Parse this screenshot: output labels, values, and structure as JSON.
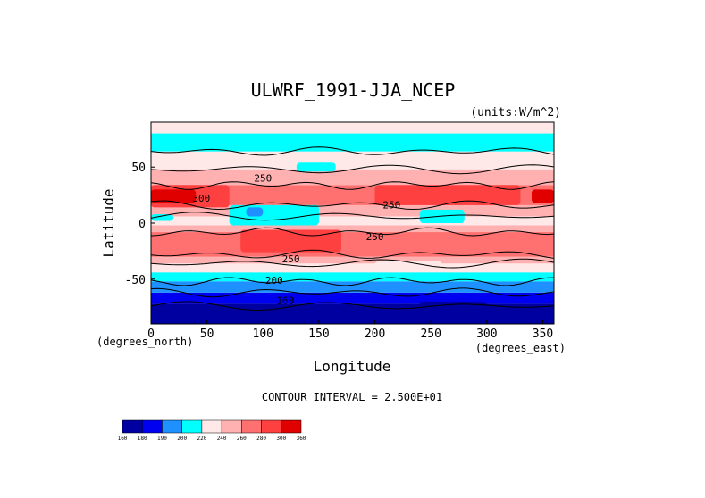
{
  "chart_data": {
    "type": "heatmap",
    "title": "ULWRF_1991-JJA_NCEP",
    "units_label": "(units:W/m^2)",
    "xlabel": "Longitude",
    "ylabel": "Latitude",
    "x_unit_label": "(degrees_east)",
    "y_unit_label": "(degrees_north)",
    "xlim": [
      0,
      360
    ],
    "ylim": [
      -90,
      90
    ],
    "x_ticks": [
      0,
      50,
      100,
      150,
      200,
      250,
      300,
      350
    ],
    "y_ticks": [
      -50,
      0,
      50
    ],
    "contour_interval_text": "CONTOUR INTERVAL = 2.500E+01",
    "contour_labels": [
      {
        "text": "250",
        "lon": 100,
        "lat": 37
      },
      {
        "text": "300",
        "lon": 45,
        "lat": 19
      },
      {
        "text": "250",
        "lon": 215,
        "lat": 13
      },
      {
        "text": "250",
        "lon": 200,
        "lat": -15
      },
      {
        "text": "250",
        "lon": 125,
        "lat": -35
      },
      {
        "text": "200",
        "lon": 110,
        "lat": -54
      },
      {
        "text": "160",
        "lon": 120,
        "lat": -72
      }
    ],
    "colorbar": {
      "levels": [
        "160",
        "180",
        "190",
        "200",
        "220",
        "240",
        "260",
        "280",
        "300",
        "360"
      ],
      "colors": [
        "#0000a0",
        "#0000f0",
        "#1e90ff",
        "#00ffff",
        "#ffe8e8",
        "#ffb0b0",
        "#ff7070",
        "#ff4040",
        "#e00000"
      ]
    },
    "grid": false
  }
}
